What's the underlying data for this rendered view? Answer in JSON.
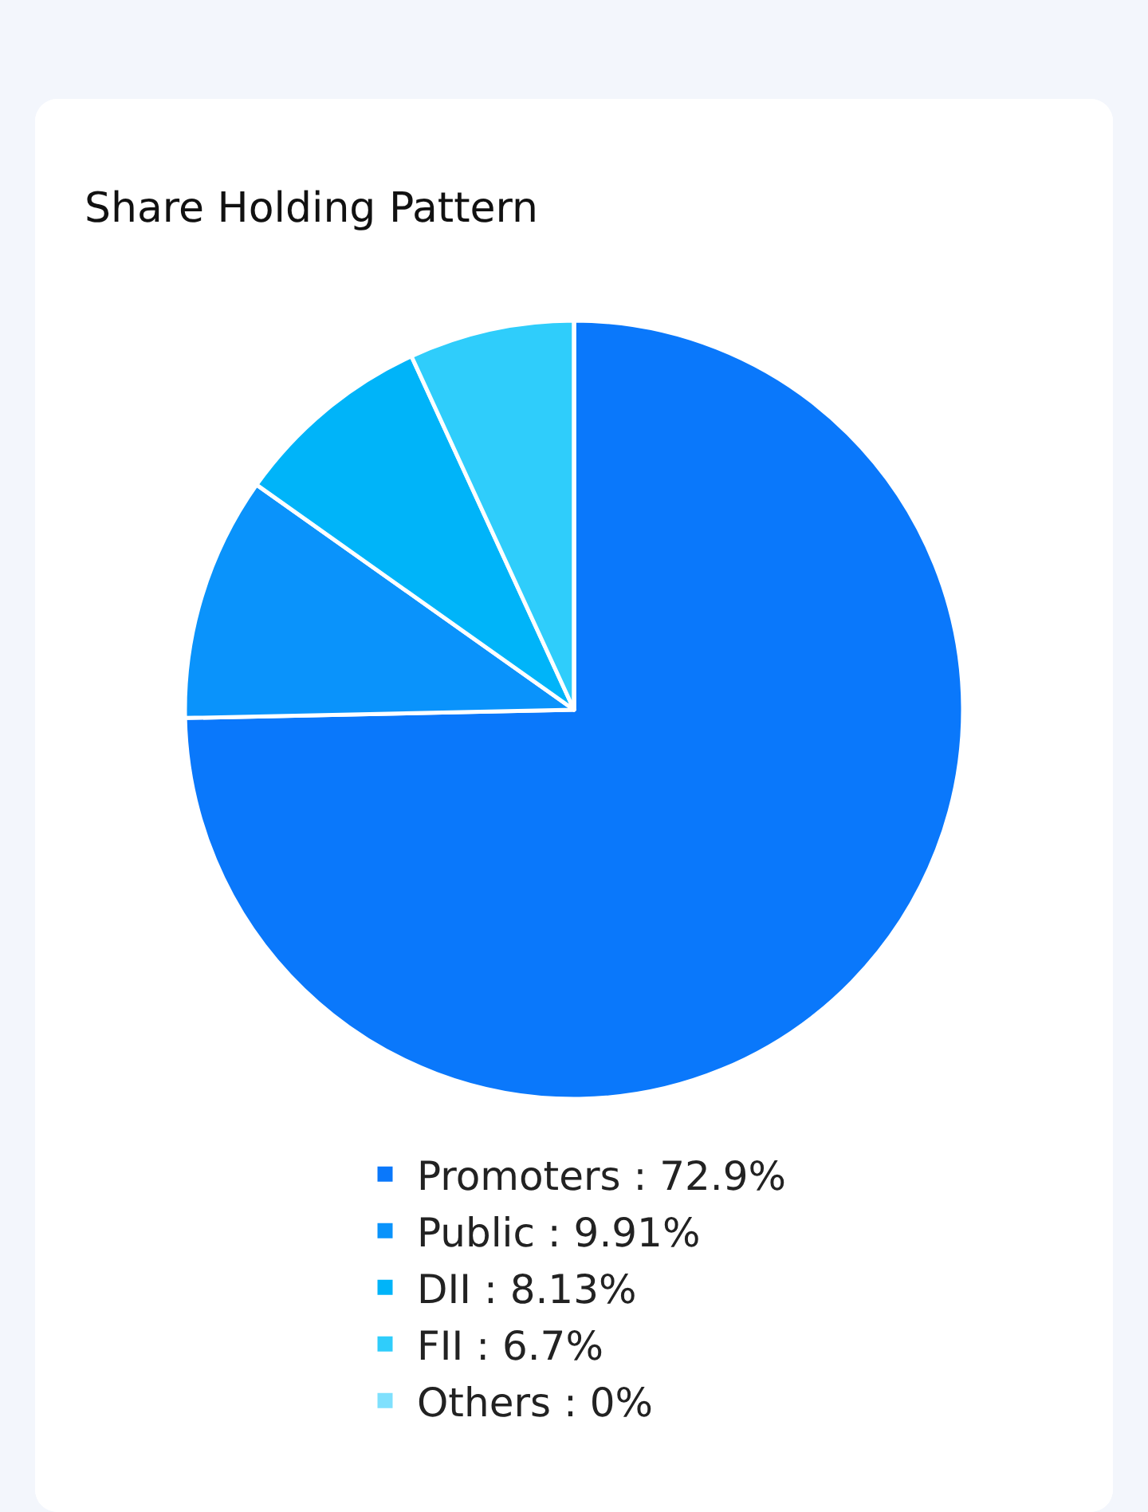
{
  "chart_data": {
    "type": "pie",
    "title": "Share Holding Pattern",
    "categories": [
      "Promoters",
      "Public",
      "DII",
      "FII",
      "Others"
    ],
    "values": [
      72.9,
      9.91,
      8.13,
      6.7,
      0
    ],
    "value_labels": [
      "72.9%",
      "9.91%",
      "8.13%",
      "6.7%",
      "0%"
    ],
    "colors": [
      "#0a78fb",
      "#0a93fb",
      "#00b4f9",
      "#2fcdfb",
      "#7fe0fd"
    ],
    "legend": "bottom"
  }
}
